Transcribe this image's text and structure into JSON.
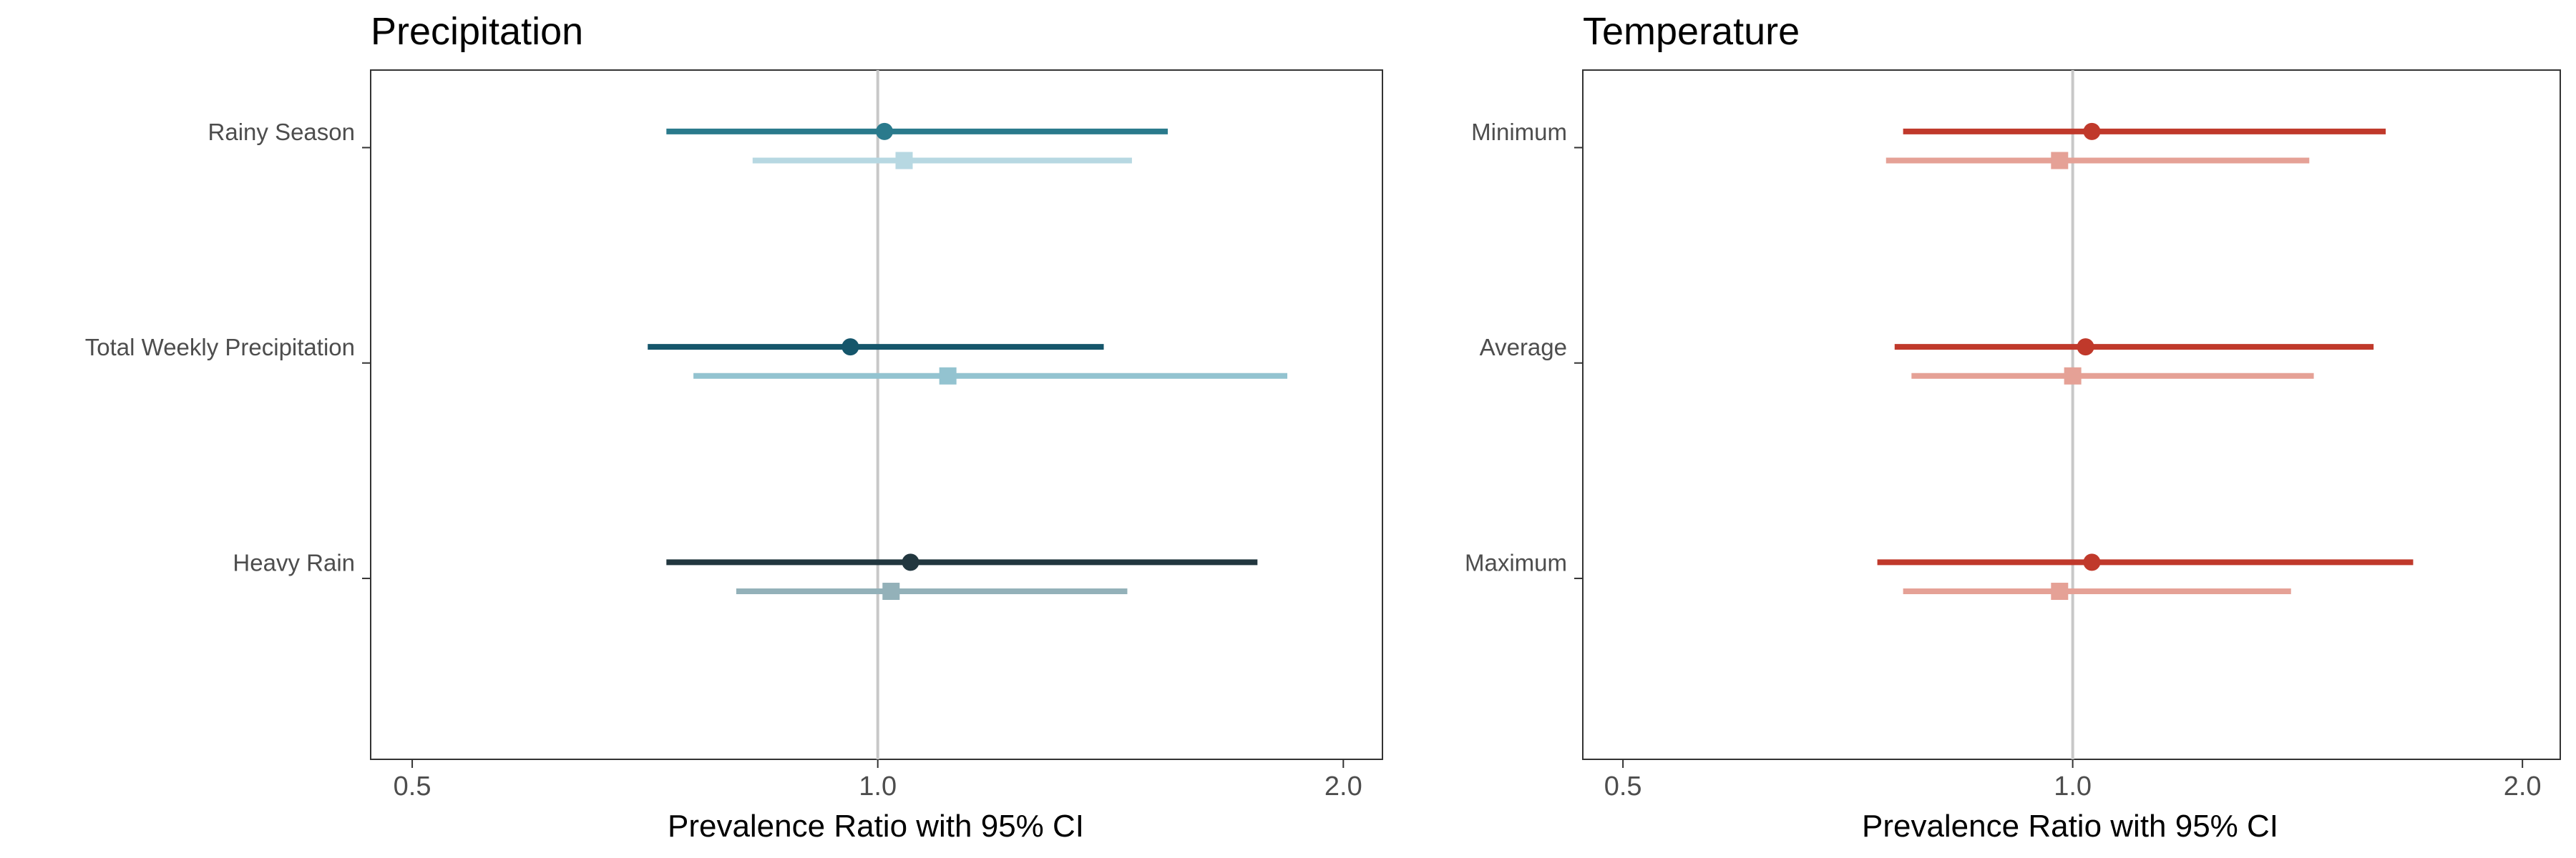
{
  "chart_data": [
    {
      "type": "forest",
      "title": "Precipitation",
      "xlabel": "Prevalence Ratio with 95% CI",
      "x_scale": "log",
      "xlim": [
        0.47,
        2.12
      ],
      "xticks": [
        0.5,
        1.0,
        2.0
      ],
      "xtick_labels": [
        "0.5",
        "1.0",
        "2.0"
      ],
      "reference_line": 1.0,
      "grid": false,
      "categories": [
        {
          "label": "Rainy Season",
          "estimates": [
            {
              "marker": "circle",
              "color": "#2a7a8c",
              "estimate": 1.01,
              "lower": 0.73,
              "upper": 1.54
            },
            {
              "marker": "square",
              "color": "#b7d8e2",
              "estimate": 1.04,
              "lower": 0.83,
              "upper": 1.46
            }
          ]
        },
        {
          "label": "Total Weekly Precipitation",
          "estimates": [
            {
              "marker": "circle",
              "color": "#15566b",
              "estimate": 0.96,
              "lower": 0.71,
              "upper": 1.4
            },
            {
              "marker": "square",
              "color": "#93c3d0",
              "estimate": 1.11,
              "lower": 0.76,
              "upper": 1.84
            }
          ]
        },
        {
          "label": "Heavy Rain",
          "estimates": [
            {
              "marker": "circle",
              "color": "#22373f",
              "estimate": 1.05,
              "lower": 0.73,
              "upper": 1.76
            },
            {
              "marker": "square",
              "color": "#93b1b9",
              "estimate": 1.02,
              "lower": 0.81,
              "upper": 1.45
            }
          ]
        }
      ]
    },
    {
      "type": "forest",
      "title": "Temperature",
      "xlabel": "Prevalence Ratio with 95% CI",
      "x_scale": "log",
      "xlim": [
        0.47,
        2.12
      ],
      "xticks": [
        0.5,
        1.0,
        2.0
      ],
      "xtick_labels": [
        "0.5",
        "1.0",
        "2.0"
      ],
      "reference_line": 1.0,
      "grid": false,
      "categories": [
        {
          "label": "Minimum",
          "estimates": [
            {
              "marker": "circle",
              "color": "#c0392b",
              "estimate": 1.03,
              "lower": 0.77,
              "upper": 1.62
            },
            {
              "marker": "square",
              "color": "#e5a196",
              "estimate": 0.98,
              "lower": 0.75,
              "upper": 1.44
            }
          ]
        },
        {
          "label": "Average",
          "estimates": [
            {
              "marker": "circle",
              "color": "#c0392b",
              "estimate": 1.02,
              "lower": 0.76,
              "upper": 1.59
            },
            {
              "marker": "square",
              "color": "#e5a196",
              "estimate": 1.0,
              "lower": 0.78,
              "upper": 1.45
            }
          ]
        },
        {
          "label": "Maximum",
          "estimates": [
            {
              "marker": "circle",
              "color": "#c0392b",
              "estimate": 1.03,
              "lower": 0.74,
              "upper": 1.69
            },
            {
              "marker": "square",
              "color": "#e5a196",
              "estimate": 0.98,
              "lower": 0.77,
              "upper": 1.4
            }
          ]
        }
      ]
    }
  ]
}
